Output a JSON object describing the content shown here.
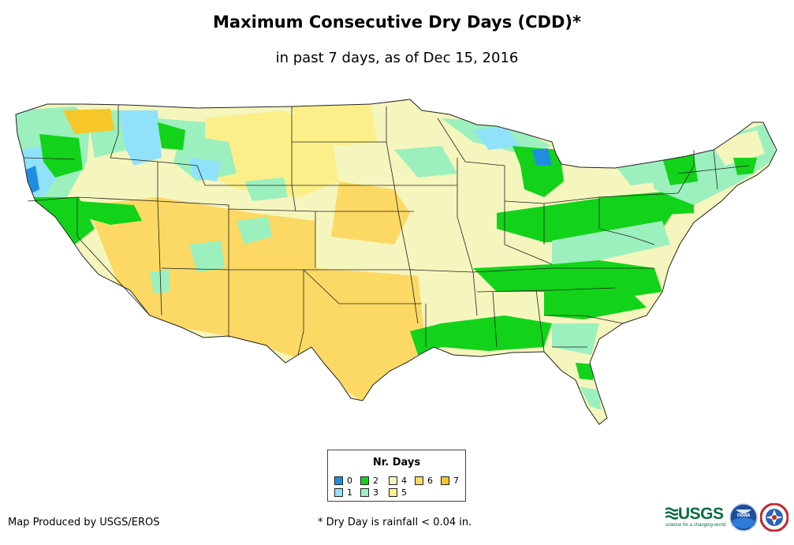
{
  "title": "Maximum Consecutive Dry Days (CDD)*",
  "subtitle": "in past 7 days, as of Dec 15, 2016",
  "legend": {
    "title": "Nr. Days",
    "items": [
      {
        "label": "0",
        "color": "#1f8ee0"
      },
      {
        "label": "1",
        "color": "#8fe2fa"
      },
      {
        "label": "2",
        "color": "#12d31a"
      },
      {
        "label": "3",
        "color": "#9cf0be"
      },
      {
        "label": "4",
        "color": "#f5f5be"
      },
      {
        "label": "5",
        "color": "#fcef8a"
      },
      {
        "label": "6",
        "color": "#fbd964"
      },
      {
        "label": "7",
        "color": "#f7c628"
      }
    ]
  },
  "credit": "Map Produced by USGS/EROS",
  "note": "* Dry Day is rainfall < 0.04 in.",
  "logos": {
    "usgs": "USGS",
    "usgs_tagline": "science for a changing world",
    "noaa": "noaa",
    "nws": "National Weather Service"
  }
}
